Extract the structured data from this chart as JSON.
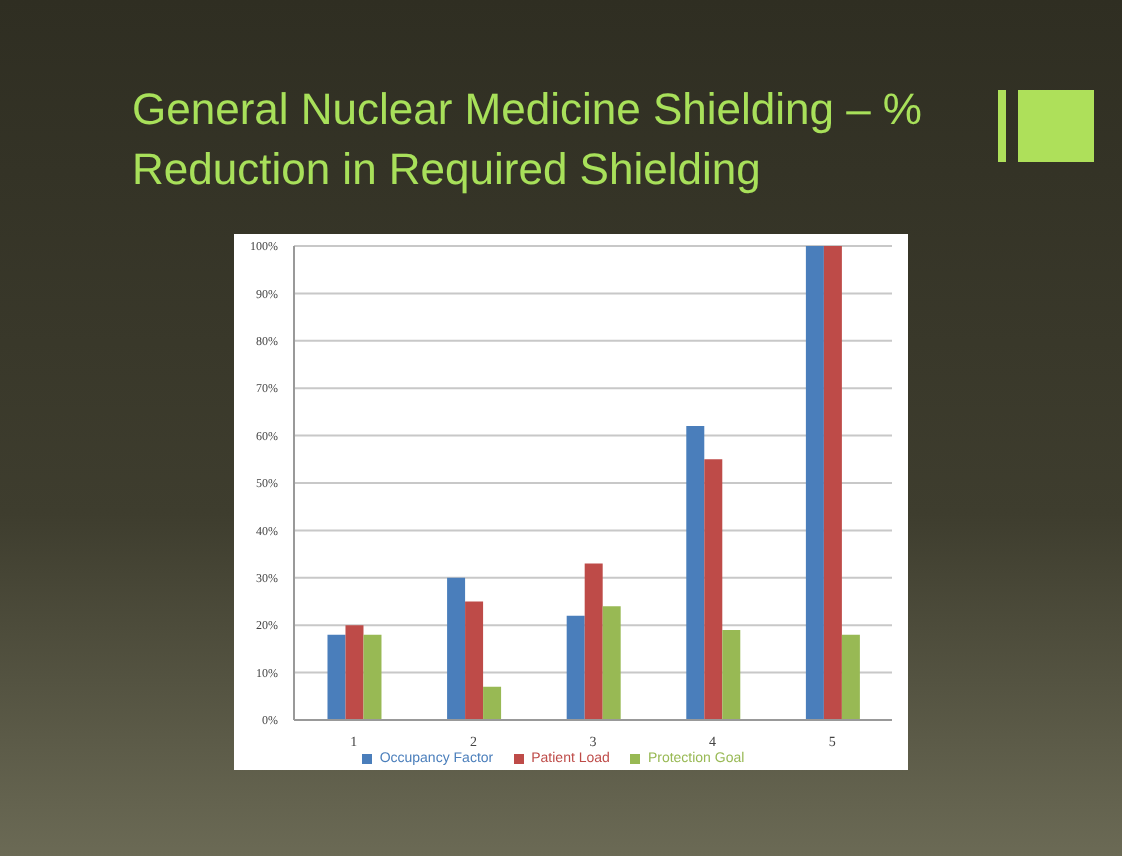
{
  "chart_data": {
    "type": "bar",
    "title": "General Nuclear Medicine Shielding – % Reduction in Required Shielding",
    "categories": [
      "1",
      "2",
      "3",
      "4",
      "5"
    ],
    "series": [
      {
        "name": "Occupancy Factor",
        "color": "#4a7ebb",
        "values": [
          18,
          30,
          22,
          62,
          100
        ]
      },
      {
        "name": "Patient Load",
        "color": "#be4b48",
        "values": [
          20,
          25,
          33,
          55,
          100
        ]
      },
      {
        "name": "Protection Goal",
        "color": "#98b954",
        "values": [
          18,
          7,
          24,
          19,
          18
        ]
      }
    ],
    "ylim": [
      0,
      100
    ],
    "yticks": [
      {
        "value": 0,
        "label": "0%"
      },
      {
        "value": 10,
        "label": "10%"
      },
      {
        "value": 20,
        "label": "20%"
      },
      {
        "value": 30,
        "label": "30%"
      },
      {
        "value": 40,
        "label": "40%"
      },
      {
        "value": 50,
        "label": "50%"
      },
      {
        "value": 60,
        "label": "60%"
      },
      {
        "value": 70,
        "label": "70%"
      },
      {
        "value": 80,
        "label": "80%"
      },
      {
        "value": 90,
        "label": "90%"
      },
      {
        "value": 100,
        "label": "100%"
      }
    ],
    "grid": "y",
    "legend": "bottom"
  }
}
